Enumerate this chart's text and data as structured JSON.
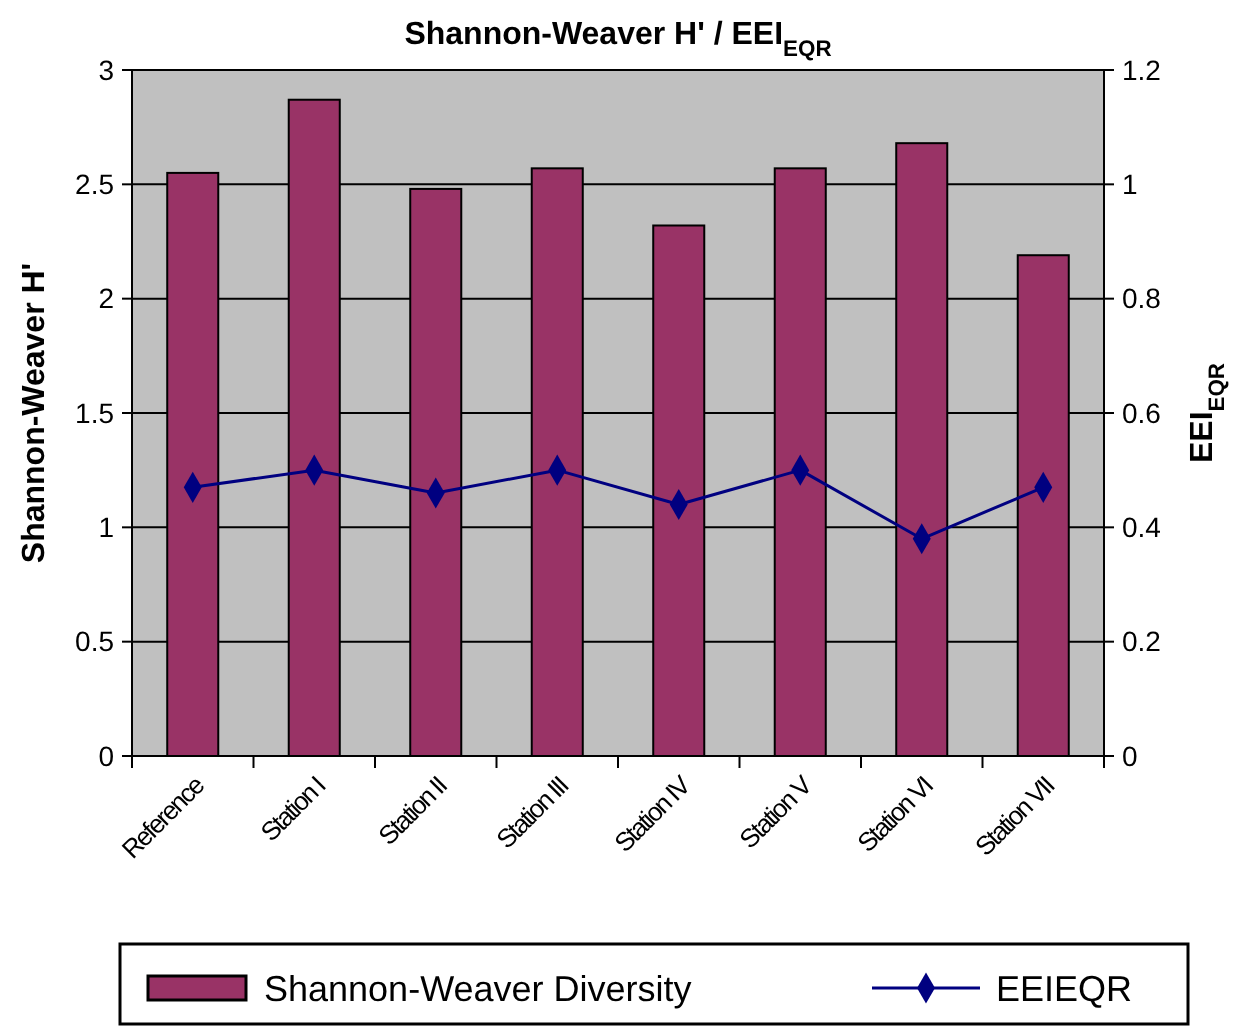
{
  "chart_data": {
    "type": "bar",
    "title": "Shannon-Weaver H' / EEI$_{EQR}$",
    "ylabel": "Shannon-Weaver H'",
    "y2label": "EEI$_{EQR}$",
    "categories": [
      "Reference",
      "Station I",
      "Station II",
      "Station III",
      "Station IV",
      "Station V",
      "Station VI",
      "Station VII"
    ],
    "series": [
      {
        "name": "Shannon-Weaver Diversity",
        "color": "#993366",
        "values": [
          2.55,
          2.87,
          2.48,
          2.57,
          2.32,
          2.57,
          2.68,
          2.19
        ]
      },
      {
        "name": "EEIEQR",
        "type": "line",
        "axis": "y2",
        "color": "#000080",
        "marker": "diamond",
        "values": [
          0.47,
          0.5,
          0.46,
          0.5,
          0.44,
          0.5,
          0.38,
          0.47
        ]
      }
    ],
    "ylim": [
      0,
      3
    ],
    "yticks": [
      0,
      0.5,
      1,
      1.5,
      2,
      2.5,
      3
    ],
    "y2lim": [
      0,
      1.2
    ],
    "y2ticks": [
      0,
      0.2,
      0.4,
      0.6,
      0.8,
      1,
      1.2
    ],
    "grid": "y",
    "legend": "bottom"
  }
}
